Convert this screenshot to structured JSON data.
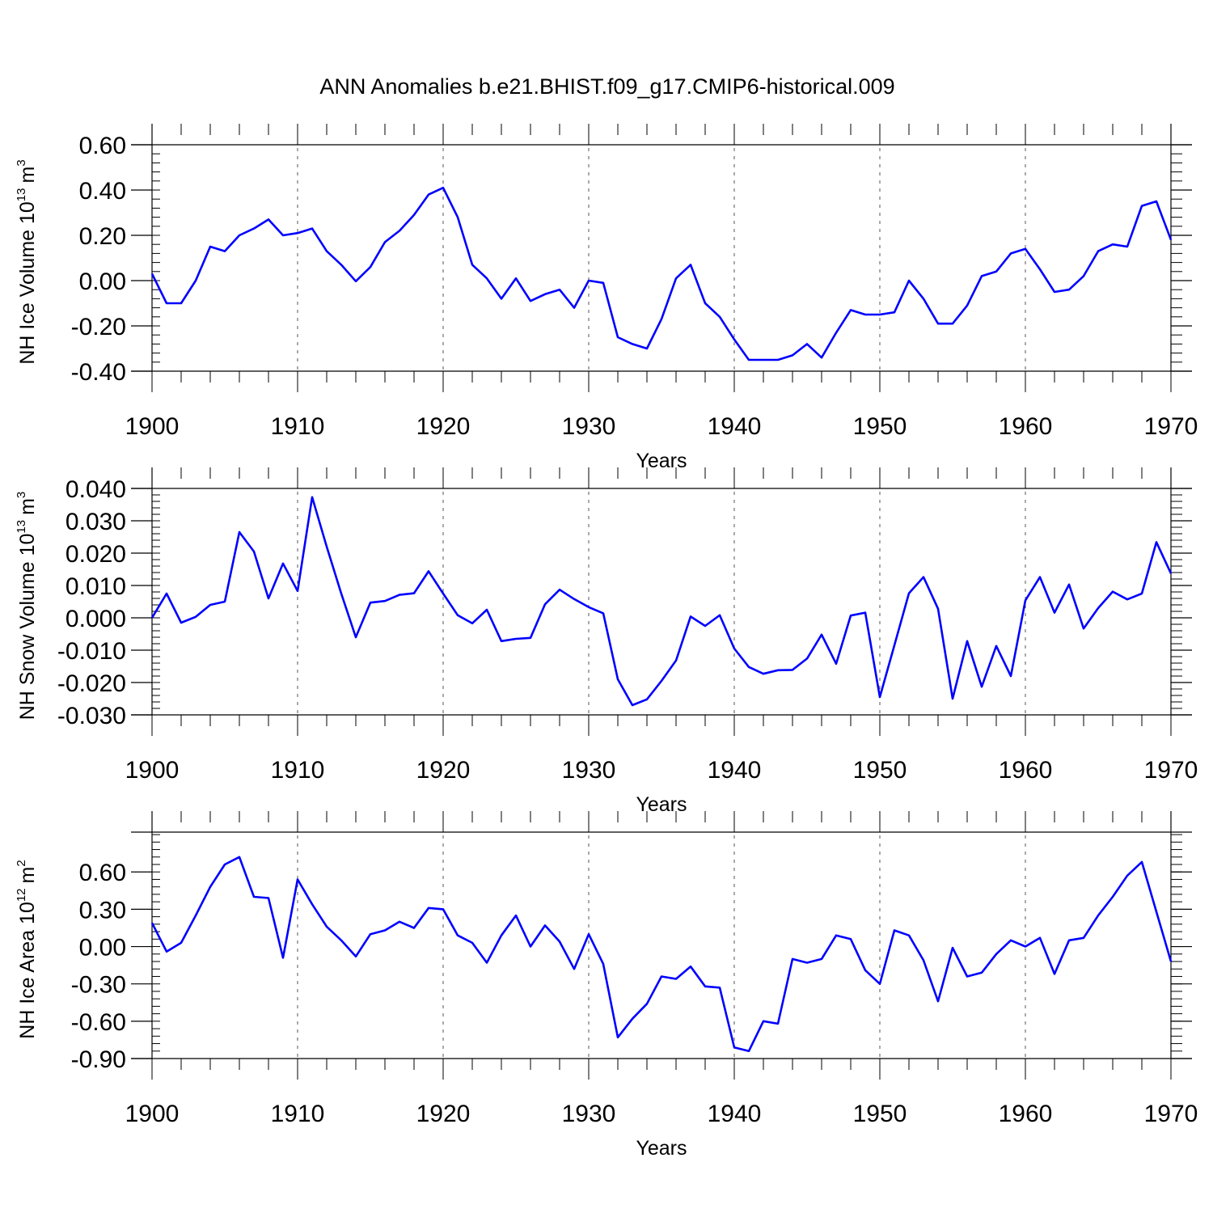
{
  "figure_title": "ANN Anomalies b.e21.BHIST.f09_g17.CMIP6-historical.009",
  "colors": {
    "series": "#0000ff",
    "axis": "#000000",
    "grid": "#555555"
  },
  "chart_data": [
    {
      "type": "line",
      "ylabel_main": "NH Ice Volume 10",
      "ylabel_exp": "13",
      "ylabel_unit": "m",
      "ylabel_unit_exp": "3",
      "xlabel": "Years",
      "xlim": [
        1900,
        1970
      ],
      "ylim": [
        -0.4,
        0.6
      ],
      "yticks": [
        -0.4,
        -0.2,
        0.0,
        0.2,
        0.4,
        0.6
      ],
      "ytick_labels": [
        "-0.40",
        "-0.20",
        "0.00",
        "0.20",
        "0.40",
        "0.60"
      ],
      "xticks": [
        1900,
        1910,
        1920,
        1930,
        1940,
        1950,
        1960,
        1970
      ],
      "xtick_labels": [
        "1900",
        "1910",
        "1920",
        "1930",
        "1940",
        "1950",
        "1960",
        "1970"
      ],
      "grid_x": true,
      "series": [
        {
          "x": [
            1900,
            1901,
            1902,
            1903,
            1904,
            1905,
            1906,
            1907,
            1908,
            1909,
            1910,
            1911,
            1912,
            1913,
            1914,
            1915,
            1916,
            1917,
            1918,
            1919,
            1920,
            1921,
            1922,
            1923,
            1924,
            1925,
            1926,
            1927,
            1928,
            1929,
            1930,
            1931,
            1932,
            1933,
            1934,
            1935,
            1936,
            1937,
            1938,
            1939,
            1940,
            1941,
            1942,
            1943,
            1944,
            1945,
            1946,
            1947,
            1948,
            1949,
            1950,
            1951,
            1952,
            1953,
            1954,
            1955,
            1956,
            1957,
            1958,
            1959,
            1960,
            1961,
            1962,
            1963,
            1964,
            1965,
            1966,
            1967,
            1968,
            1969,
            1970
          ],
          "values": [
            0.03,
            -0.1,
            -0.1,
            0.0,
            0.15,
            0.13,
            0.2,
            0.23,
            0.27,
            0.2,
            0.21,
            0.23,
            0.13,
            0.07,
            -0.003,
            0.06,
            0.17,
            0.22,
            0.29,
            0.38,
            0.41,
            0.28,
            0.07,
            0.01,
            -0.08,
            0.01,
            -0.09,
            -0.06,
            -0.04,
            -0.12,
            0.0,
            -0.01,
            -0.25,
            -0.28,
            -0.3,
            -0.17,
            0.01,
            0.07,
            -0.1,
            -0.16,
            -0.26,
            -0.35,
            -0.35,
            -0.35,
            -0.33,
            -0.28,
            -0.34,
            -0.23,
            -0.13,
            -0.15,
            -0.15,
            -0.14,
            0.0,
            -0.08,
            -0.19,
            -0.19,
            -0.11,
            0.02,
            0.04,
            0.12,
            0.14,
            0.05,
            -0.05,
            -0.04,
            0.02,
            0.13,
            0.16,
            0.15,
            0.33,
            0.35,
            0.18
          ]
        }
      ]
    },
    {
      "type": "line",
      "ylabel_main": "NH Snow Volume 10",
      "ylabel_exp": "13",
      "ylabel_unit": "m",
      "ylabel_unit_exp": "3",
      "xlabel": "Years",
      "xlim": [
        1900,
        1970
      ],
      "ylim": [
        -0.03,
        0.04
      ],
      "yticks": [
        -0.03,
        -0.02,
        -0.01,
        0.0,
        0.01,
        0.02,
        0.03,
        0.04
      ],
      "ytick_labels": [
        "-0.030",
        "-0.020",
        "-0.010",
        "0.000",
        "0.010",
        "0.020",
        "0.030",
        "0.040"
      ],
      "xticks": [
        1900,
        1910,
        1920,
        1930,
        1940,
        1950,
        1960,
        1970
      ],
      "xtick_labels": [
        "1900",
        "1910",
        "1920",
        "1930",
        "1940",
        "1950",
        "1960",
        "1970"
      ],
      "grid_x": true,
      "series": [
        {
          "x": [
            1900,
            1901,
            1902,
            1903,
            1904,
            1905,
            1906,
            1907,
            1908,
            1909,
            1910,
            1911,
            1912,
            1913,
            1914,
            1915,
            1916,
            1917,
            1918,
            1919,
            1920,
            1921,
            1922,
            1923,
            1924,
            1925,
            1926,
            1927,
            1928,
            1929,
            1930,
            1931,
            1932,
            1933,
            1934,
            1935,
            1936,
            1937,
            1938,
            1939,
            1940,
            1941,
            1942,
            1943,
            1944,
            1945,
            1946,
            1947,
            1948,
            1949,
            1950,
            1951,
            1952,
            1953,
            1954,
            1955,
            1956,
            1957,
            1958,
            1959,
            1960,
            1961,
            1962,
            1963,
            1964,
            1965,
            1966,
            1967,
            1968,
            1969,
            1970
          ],
          "values": [
            0.0,
            0.0075,
            -0.0015,
            0.0003,
            0.004,
            0.005,
            0.0265,
            0.0205,
            0.006,
            0.0168,
            0.0083,
            0.0373,
            0.022,
            0.0075,
            -0.006,
            0.0047,
            0.0052,
            0.0071,
            0.0076,
            0.0144,
            0.0075,
            0.0008,
            -0.0017,
            0.0025,
            -0.0072,
            -0.0065,
            -0.0062,
            0.0042,
            0.0087,
            0.0058,
            0.0033,
            0.0014,
            -0.019,
            -0.027,
            -0.0252,
            -0.0195,
            -0.0132,
            0.0004,
            -0.0025,
            0.0008,
            -0.0095,
            -0.0152,
            -0.0173,
            -0.0162,
            -0.0161,
            -0.0126,
            -0.0052,
            -0.0142,
            0.0007,
            0.0016,
            -0.0245,
            -0.0085,
            0.0076,
            0.0126,
            0.0028,
            -0.025,
            -0.0072,
            -0.0213,
            -0.0087,
            -0.018,
            0.0054,
            0.0126,
            0.0016,
            0.0103,
            -0.0033,
            0.003,
            0.0081,
            0.0057,
            0.0075,
            0.0234,
            0.0137
          ]
        }
      ]
    },
    {
      "type": "line",
      "ylabel_main": "NH Ice Area 10",
      "ylabel_exp": "12",
      "ylabel_unit": "m",
      "ylabel_unit_exp": "2",
      "xlabel": "Years",
      "xlim": [
        1900,
        1970
      ],
      "ylim": [
        -0.9,
        0.92
      ],
      "yticks": [
        -0.9,
        -0.6,
        -0.3,
        0.0,
        0.3,
        0.6
      ],
      "ytick_labels": [
        "-0.90",
        "-0.60",
        "-0.30",
        "0.00",
        "0.30",
        "0.60"
      ],
      "xticks": [
        1900,
        1910,
        1920,
        1930,
        1940,
        1950,
        1960,
        1970
      ],
      "xtick_labels": [
        "1900",
        "1910",
        "1920",
        "1930",
        "1940",
        "1950",
        "1960",
        "1970"
      ],
      "grid_x": true,
      "series": [
        {
          "x": [
            1900,
            1901,
            1902,
            1903,
            1904,
            1905,
            1906,
            1907,
            1908,
            1909,
            1910,
            1911,
            1912,
            1913,
            1914,
            1915,
            1916,
            1917,
            1918,
            1919,
            1920,
            1921,
            1922,
            1923,
            1924,
            1925,
            1926,
            1927,
            1928,
            1929,
            1930,
            1931,
            1932,
            1933,
            1934,
            1935,
            1936,
            1937,
            1938,
            1939,
            1940,
            1941,
            1942,
            1943,
            1944,
            1945,
            1946,
            1947,
            1948,
            1949,
            1950,
            1951,
            1952,
            1953,
            1954,
            1955,
            1956,
            1957,
            1958,
            1959,
            1960,
            1961,
            1962,
            1963,
            1964,
            1965,
            1966,
            1967,
            1968,
            1969,
            1970
          ],
          "values": [
            0.19,
            -0.04,
            0.03,
            0.25,
            0.48,
            0.66,
            0.72,
            0.4,
            0.39,
            -0.09,
            0.54,
            0.34,
            0.16,
            0.05,
            -0.08,
            0.1,
            0.13,
            0.2,
            0.15,
            0.31,
            0.3,
            0.09,
            0.03,
            -0.13,
            0.09,
            0.25,
            0.0,
            0.17,
            0.04,
            -0.18,
            0.1,
            -0.14,
            -0.73,
            -0.58,
            -0.46,
            -0.24,
            -0.26,
            -0.16,
            -0.32,
            -0.33,
            -0.81,
            -0.84,
            -0.6,
            -0.62,
            -0.1,
            -0.13,
            -0.1,
            0.09,
            0.06,
            -0.19,
            -0.3,
            0.13,
            0.09,
            -0.11,
            -0.44,
            -0.01,
            -0.24,
            -0.21,
            -0.06,
            0.05,
            0.0,
            0.07,
            -0.22,
            0.05,
            0.07,
            0.25,
            0.4,
            0.57,
            0.68,
            0.28,
            -0.12
          ]
        }
      ]
    }
  ]
}
